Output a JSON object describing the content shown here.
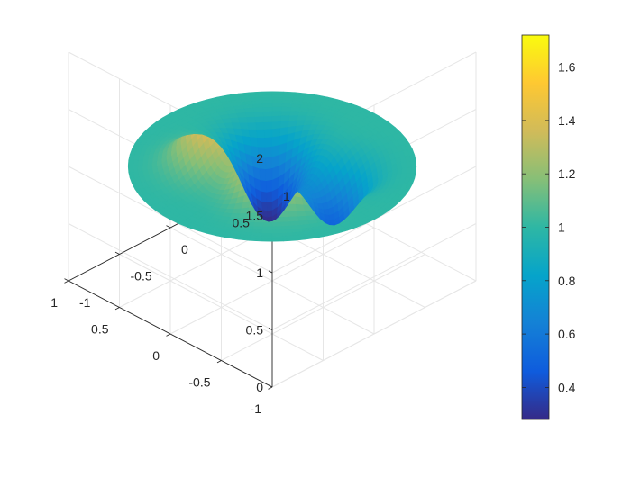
{
  "chart_data": {
    "type": "surface",
    "title": "",
    "xlabel": "",
    "ylabel": "",
    "zlabel": "",
    "xlim": [
      -1,
      1
    ],
    "ylim": [
      -1,
      1
    ],
    "zlim": [
      0,
      2
    ],
    "grid": true,
    "box": "open",
    "colormap": "parula",
    "clim": [
      0.28,
      1.72
    ],
    "x_ticks": [
      -1,
      -0.5,
      0,
      0.5,
      1
    ],
    "y_ticks": [
      -1,
      -0.5,
      0,
      0.5,
      1
    ],
    "z_ticks": [
      0,
      0.5,
      1,
      1.5,
      2
    ],
    "x_tick_labels": [
      "-1",
      "-0.5",
      "0",
      "0.5",
      "1"
    ],
    "y_tick_labels": [
      "-1",
      "-0.5",
      "0",
      "0.5",
      "1"
    ],
    "z_tick_labels": [
      "0",
      "0.5",
      "1",
      "1.5",
      "2"
    ],
    "surface": {
      "domain": "unit disk",
      "radius": 1,
      "baseline_z": 1,
      "max_z": 1.72,
      "min_z": 0.28,
      "max_location": [
        -0.28,
        -0.24
      ],
      "min_location": [
        0.28,
        0.24
      ],
      "secondary_max_location": [
        0.3,
        -0.28
      ],
      "secondary_min_location": [
        -0.3,
        0.28
      ]
    },
    "colorbar": {
      "placement": "right",
      "ticks": [
        0.4,
        0.6,
        0.8,
        1,
        1.2,
        1.4,
        1.6
      ],
      "tick_labels": [
        "0.4",
        "0.6",
        "0.8",
        "1",
        "1.2",
        "1.4",
        "1.6"
      ]
    },
    "colors": {
      "parula": [
        "#352a87",
        "#0f5cdd",
        "#1481d6",
        "#06a4ca",
        "#2eb7a4",
        "#87bf77",
        "#d1bb59",
        "#fec832",
        "#f9fb0e"
      ],
      "grid": "#e6e6e6",
      "axis": "#262626"
    }
  }
}
